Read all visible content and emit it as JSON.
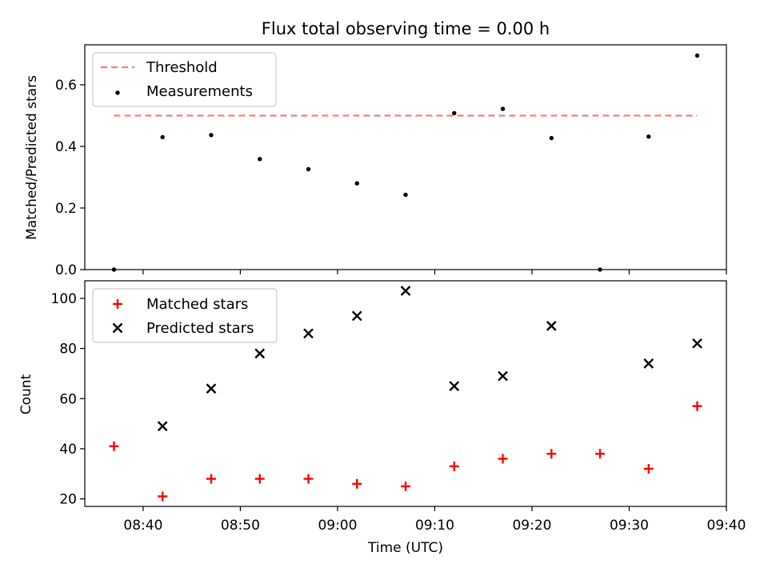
{
  "chart_data": [
    {
      "type": "scatter",
      "title": "Flux total observing time = 0.00 h",
      "xlabel": "",
      "ylabel": "Matched/Predicted stars",
      "xlim": [
        "08:34",
        "09:40"
      ],
      "ylim": [
        0,
        0.73
      ],
      "yticks": [
        "0.0",
        "0.2",
        "0.4",
        "0.6"
      ],
      "legend_location": "upper left",
      "threshold": {
        "name": "Threshold",
        "value": 0.5,
        "x_range": [
          "08:37",
          "09:37"
        ],
        "color": "#ff7b7b",
        "style": "dashed"
      },
      "series": [
        {
          "name": "Measurements",
          "marker": "dot",
          "color": "#000000",
          "x": [
            "08:37",
            "08:42",
            "08:47",
            "08:52",
            "08:57",
            "09:02",
            "09:07",
            "09:12",
            "09:17",
            "09:22",
            "09:27",
            "09:32",
            "09:37"
          ],
          "y": [
            0.0,
            0.43,
            0.437,
            0.359,
            0.326,
            0.28,
            0.243,
            0.508,
            0.522,
            0.427,
            0.0,
            0.432,
            0.695
          ]
        }
      ]
    },
    {
      "type": "scatter",
      "title": "",
      "xlabel": "Time (UTC)",
      "ylabel": "Count",
      "xlim": [
        "08:34",
        "09:40"
      ],
      "ylim": [
        17,
        107
      ],
      "yticks": [
        "20",
        "40",
        "60",
        "80",
        "100"
      ],
      "xticks": [
        "08:40",
        "08:50",
        "09:00",
        "09:10",
        "09:20",
        "09:30",
        "09:40"
      ],
      "legend_location": "upper left",
      "series": [
        {
          "name": "Matched stars",
          "marker": "plus",
          "color": "#ff0000",
          "x": [
            "08:37",
            "08:42",
            "08:47",
            "08:52",
            "08:57",
            "09:02",
            "09:07",
            "09:12",
            "09:17",
            "09:22",
            "09:27",
            "09:32",
            "09:37"
          ],
          "y": [
            41,
            21,
            28,
            28,
            28,
            26,
            25,
            33,
            36,
            38,
            38,
            32,
            57
          ]
        },
        {
          "name": "Predicted stars",
          "marker": "x",
          "color": "#000000",
          "x": [
            "08:37",
            "08:42",
            "08:47",
            "08:52",
            "08:57",
            "09:02",
            "09:07",
            "09:12",
            "09:17",
            "09:22",
            "09:27",
            "09:32",
            "09:37"
          ],
          "y": [
            null,
            49,
            64,
            78,
            86,
            93,
            103,
            65,
            69,
            89,
            null,
            74,
            82
          ]
        }
      ]
    }
  ]
}
